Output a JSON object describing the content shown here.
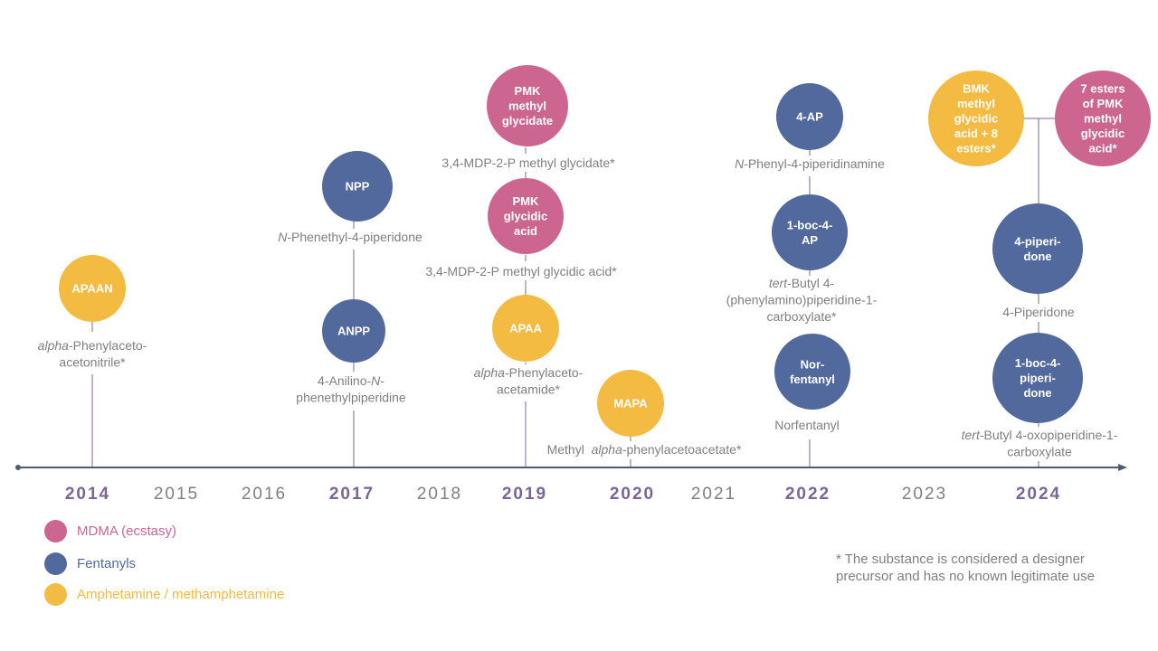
{
  "colors": {
    "mdma": "#cc6690",
    "fentanyl": "#52699d",
    "amphetamine": "#f4bb42",
    "axis": "#4d5b7a",
    "connector": "#7a6a9a",
    "caption": "#7f7f7f",
    "year_strong": "#7b6595",
    "year_normal": "#7f7f7f"
  },
  "years": [
    {
      "label": "2014",
      "strong": true
    },
    {
      "label": "2015",
      "strong": false
    },
    {
      "label": "2016",
      "strong": false
    },
    {
      "label": "2017",
      "strong": true
    },
    {
      "label": "2018",
      "strong": false
    },
    {
      "label": "2019",
      "strong": true
    },
    {
      "label": "2020",
      "strong": true
    },
    {
      "label": "2021",
      "strong": false
    },
    {
      "label": "2022",
      "strong": true
    },
    {
      "label": "2023",
      "strong": false
    },
    {
      "label": "2024",
      "strong": true
    }
  ],
  "nodes": [
    {
      "id": "apaan",
      "group": "amphetamine",
      "year": "2014",
      "label": [
        "APAAN"
      ]
    },
    {
      "id": "npp",
      "group": "fentanyl",
      "year": "2017",
      "label": [
        "NPP"
      ]
    },
    {
      "id": "anpp",
      "group": "fentanyl",
      "year": "2017",
      "label": [
        "ANPP"
      ]
    },
    {
      "id": "pmk-methyl-glycidate",
      "group": "mdma",
      "year": "2019",
      "label": [
        "PMK",
        "methyl",
        "glycidate"
      ]
    },
    {
      "id": "pmk-glycidic-acid",
      "group": "mdma",
      "year": "2019",
      "label": [
        "PMK",
        "glycidic",
        "acid"
      ]
    },
    {
      "id": "apaa",
      "group": "amphetamine",
      "year": "2019",
      "label": [
        "APAA"
      ]
    },
    {
      "id": "mapa",
      "group": "amphetamine",
      "year": "2020",
      "label": [
        "MAPA"
      ]
    },
    {
      "id": "4-ap",
      "group": "fentanyl",
      "year": "2022",
      "label": [
        "4-AP"
      ]
    },
    {
      "id": "1-boc-4-ap",
      "group": "fentanyl",
      "year": "2022",
      "label": [
        "1-boc-4-",
        "AP"
      ]
    },
    {
      "id": "norfentanyl",
      "group": "fentanyl",
      "year": "2022",
      "label": [
        "Nor-",
        "fentanyl"
      ]
    },
    {
      "id": "bmk-methyl-glycidic-acid",
      "group": "amphetamine",
      "year": "2024",
      "label": [
        "BMK",
        "methyl",
        "glycidic",
        "acid + 8",
        "esters*"
      ]
    },
    {
      "id": "pmk-esters",
      "group": "mdma",
      "year": "2024",
      "label": [
        "7 esters",
        "of PMK",
        "methyl",
        "glycidic",
        "acid*"
      ]
    },
    {
      "id": "4-piperidone",
      "group": "fentanyl",
      "year": "2024",
      "label": [
        "4-piperi-",
        "done"
      ]
    },
    {
      "id": "1-boc-4-piperidone",
      "group": "fentanyl",
      "year": "2024",
      "label": [
        "1-boc-4-",
        "piperi-",
        "done"
      ]
    }
  ],
  "captions": [
    {
      "id": "cap-apaan",
      "lines": [
        [
          {
            "t": "alpha",
            "i": true
          },
          {
            "t": "-Phenylaceto-"
          }
        ],
        [
          {
            "t": "acetonitrile*"
          }
        ]
      ]
    },
    {
      "id": "cap-npp",
      "lines": [
        [
          {
            "t": "N",
            "i": true
          },
          {
            "t": "-Phenethyl-4-piperidone"
          }
        ]
      ]
    },
    {
      "id": "cap-anpp",
      "lines": [
        [
          {
            "t": "4-Anilino-"
          },
          {
            "t": "N",
            "i": true
          },
          {
            "t": "-"
          }
        ],
        [
          {
            "t": "phenethylpiperidine"
          }
        ]
      ]
    },
    {
      "id": "cap-pmk-methyl-glycidate",
      "lines": [
        [
          {
            "t": "3,4-MDP-2-P methyl glycidate*"
          }
        ]
      ]
    },
    {
      "id": "cap-pmk-glycidic-acid",
      "lines": [
        [
          {
            "t": "3,4-MDP-2-P methyl glycidic acid*"
          }
        ]
      ]
    },
    {
      "id": "cap-apaa",
      "lines": [
        [
          {
            "t": "alpha",
            "i": true
          },
          {
            "t": "-Phenylaceto-"
          }
        ],
        [
          {
            "t": "acetamide*"
          }
        ]
      ]
    },
    {
      "id": "cap-mapa",
      "lines": [
        [
          {
            "t": "Methyl  "
          },
          {
            "t": "alpha",
            "i": true
          },
          {
            "t": "-phenylacetoacetate*"
          }
        ]
      ]
    },
    {
      "id": "cap-4-ap",
      "lines": [
        [
          {
            "t": "N",
            "i": true
          },
          {
            "t": "-Phenyl-4-piperidinamine"
          }
        ]
      ]
    },
    {
      "id": "cap-1-boc-4-ap",
      "lines": [
        [
          {
            "t": "tert",
            "i": true
          },
          {
            "t": "-Butyl 4-"
          }
        ],
        [
          {
            "t": "(phenylamino)piperidine-1-"
          }
        ],
        [
          {
            "t": "carboxylate*"
          }
        ]
      ]
    },
    {
      "id": "cap-norfentanyl",
      "lines": [
        [
          {
            "t": "Norfentanyl"
          }
        ]
      ]
    },
    {
      "id": "cap-4-piperidone",
      "lines": [
        [
          {
            "t": "4-Piperidone"
          }
        ]
      ]
    },
    {
      "id": "cap-1-boc-4-piperidone",
      "lines": [
        [
          {
            "t": "tert",
            "i": true
          },
          {
            "t": "-Butyl 4-oxopiperidine-1-"
          }
        ],
        [
          {
            "t": "carboxylate"
          }
        ]
      ]
    }
  ],
  "legend": [
    {
      "group": "mdma",
      "label": "MDMA (ecstasy)"
    },
    {
      "group": "fentanyl",
      "label": "Fentanyls"
    },
    {
      "group": "amphetamine",
      "label": "Amphetamine / methamphetamine"
    }
  ],
  "footnote": "* The substance is considered a designer precursor and has no known legitimate use"
}
